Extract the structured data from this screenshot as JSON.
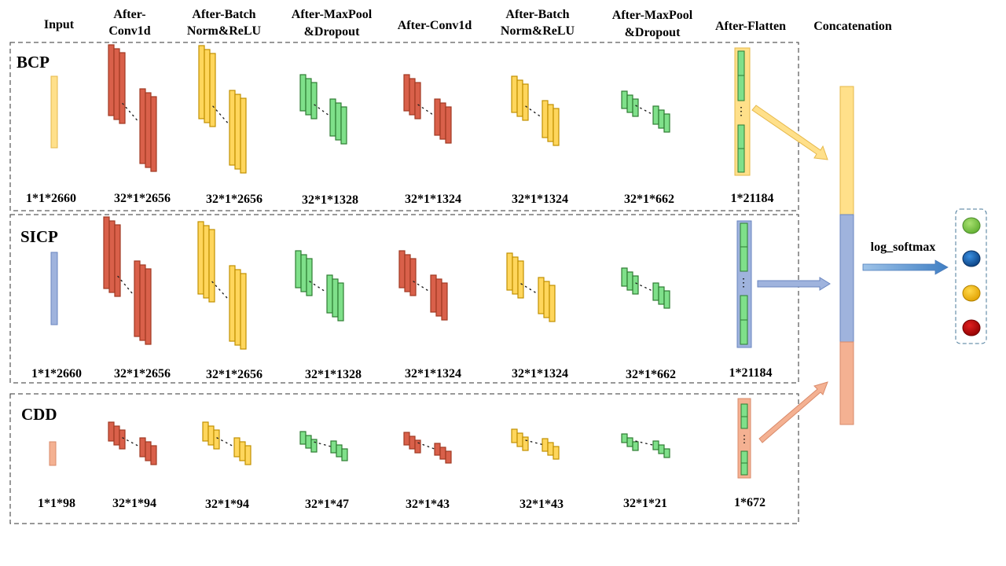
{
  "headers": [
    "Input",
    "After-\nConv1d",
    "After-Batch\nNorm&ReLU",
    "After-MaxPool\n&Dropout",
    "After-Conv1d",
    "After-Batch\nNorm&ReLU",
    "After-MaxPool\n&Dropout",
    "After-Flatten",
    "Concatenation"
  ],
  "rows": [
    {
      "label": "BCP",
      "dims": [
        "1*1*2660",
        "32*1*2656",
        "32*1*2656",
        "32*1*1328",
        "32*1*1324",
        "32*1*1324",
        "32*1*662",
        "1*21184"
      ]
    },
    {
      "label": "SICP",
      "dims": [
        "1*1*2660",
        "32*1*2656",
        "32*1*2656",
        "32*1*1328",
        "32*1*1324",
        "32*1*1324",
        "32*1*662",
        "1*21184"
      ]
    },
    {
      "label": "CDD",
      "dims": [
        "1*1*98",
        "32*1*94",
        "32*1*94",
        "32*1*47",
        "32*1*43",
        "32*1*43",
        "32*1*21",
        "1*672"
      ]
    }
  ],
  "softmax_label": "log_softmax",
  "colors": {
    "conv_fill": "#d9604a",
    "conv_stroke": "#a13a22",
    "bn_fill": "#ffd65c",
    "bn_stroke": "#c09000",
    "pool_fill": "#7fe08a",
    "pool_stroke": "#2e7d32",
    "bcp": "#ffe08a",
    "sicp": "#9fb3dd",
    "cdd": "#f4b192",
    "out_green": "#7ccf4a",
    "out_blue": "#1a5fb0",
    "out_yellow": "#ffc000",
    "out_red": "#c00000"
  }
}
